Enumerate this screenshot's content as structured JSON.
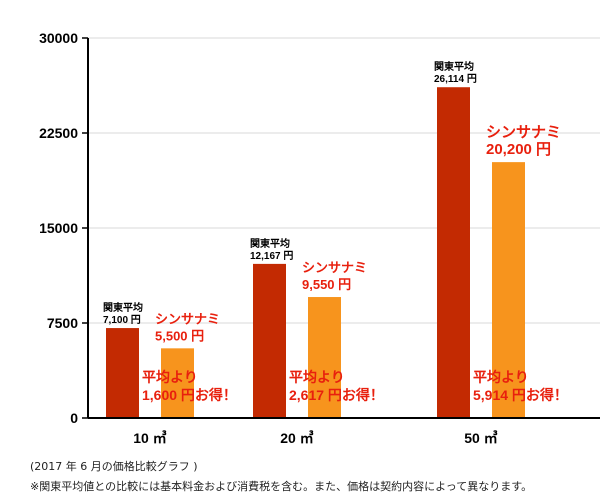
{
  "chart_data": {
    "type": "bar",
    "categories": [
      "10 ㎥",
      "20 ㎥",
      "50 ㎥"
    ],
    "ylim": [
      0,
      30000
    ],
    "yticks": [
      "0",
      "7500",
      "15000",
      "22500",
      "30000"
    ],
    "series": [
      {
        "name": "関東平均",
        "color": "#c32a02",
        "values": [
          7100,
          12167,
          26114
        ],
        "value_labels": [
          "7,100 円",
          "12,167 円",
          "26,114 円"
        ]
      },
      {
        "name": "シンサナミ",
        "color": "#f7941d",
        "values": [
          5500,
          9550,
          20200
        ],
        "value_labels": [
          "5,500 円",
          "9,550 円",
          "20,200 円"
        ]
      }
    ],
    "savings": [
      {
        "line1": "平均より",
        "line2": "1,600 円お得！"
      },
      {
        "line1": "平均より",
        "line2": "2,617 円お得！"
      },
      {
        "line1": "平均より",
        "line2": "5,914 円お得！"
      }
    ],
    "label_color": "#e8200e"
  },
  "footnotes": {
    "line1": "(2017 年 6 月の価格比較グラフ )",
    "line2": "※関東平均値との比較には基本料金および消費税を含む。また、価格は契約内容によって異なります。"
  }
}
